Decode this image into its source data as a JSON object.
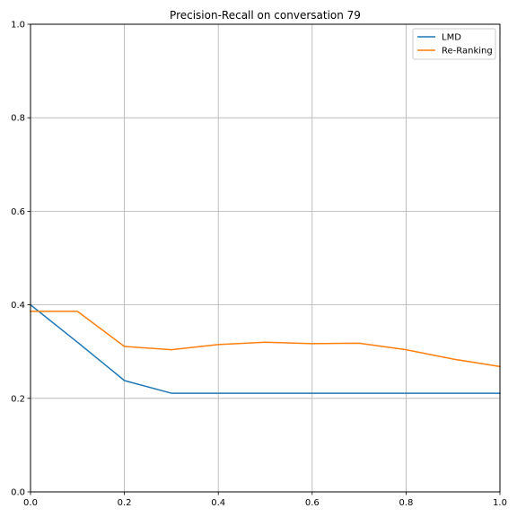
{
  "chart_data": {
    "type": "line",
    "title": "Precision-Recall on conversation 79",
    "xlabel": "",
    "ylabel": "",
    "xlim": [
      0,
      1
    ],
    "ylim": [
      0,
      1
    ],
    "grid": true,
    "legend_position": "top-right",
    "x_ticks": [
      "0.0",
      "0.2",
      "0.4",
      "0.6",
      "0.8",
      "1.0"
    ],
    "y_ticks": [
      "0.0",
      "0.2",
      "0.4",
      "0.6",
      "0.8",
      "1.0"
    ],
    "x": [
      0.0,
      0.1,
      0.2,
      0.3,
      0.4,
      0.5,
      0.6,
      0.7,
      0.8,
      0.9,
      1.0
    ],
    "series": [
      {
        "name": "LMD",
        "color": "#1f77b4",
        "values": [
          0.4,
          0.32,
          0.238,
          0.211,
          0.211,
          0.211,
          0.211,
          0.211,
          0.211,
          0.211,
          0.211
        ]
      },
      {
        "name": "Re-Ranking",
        "color": "#ff7f0e",
        "values": [
          0.386,
          0.386,
          0.311,
          0.304,
          0.315,
          0.32,
          0.317,
          0.318,
          0.304,
          0.284,
          0.268
        ]
      }
    ]
  }
}
